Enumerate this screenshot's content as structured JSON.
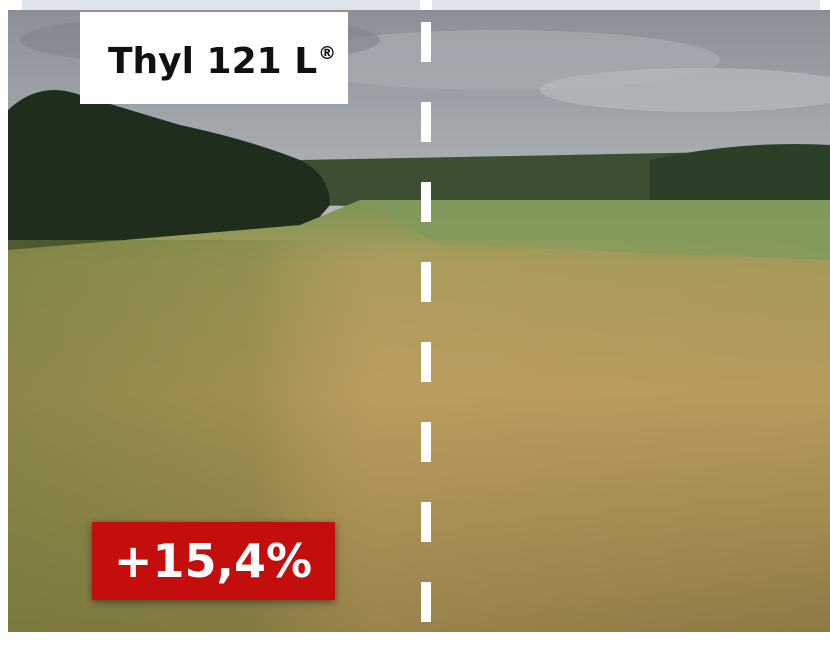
{
  "label": {
    "product": "Thyl 121 L",
    "mark": "®"
  },
  "badge": "+15,4%"
}
